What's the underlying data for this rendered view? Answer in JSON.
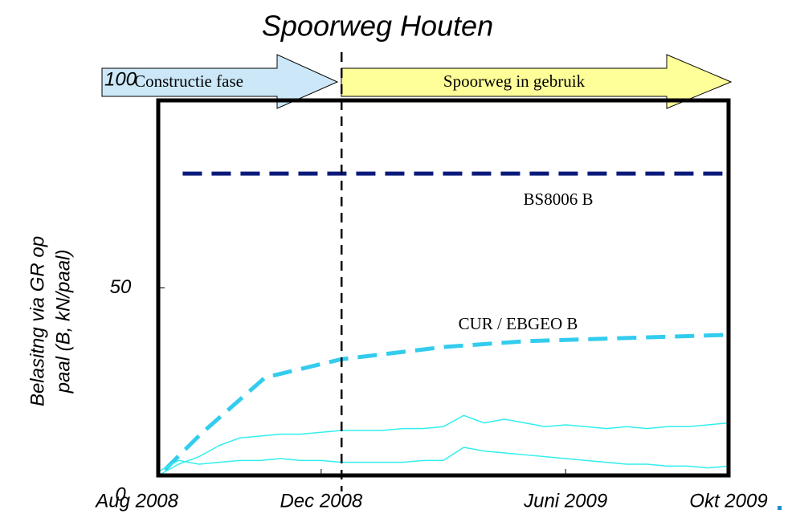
{
  "chart_data": {
    "type": "line",
    "title": "Spoorweg Houten",
    "ylabel": [
      "Belasitng via GR op",
      "paal (B, kN/paal)"
    ],
    "phases": [
      "Constructie fase",
      "Spoorweg in gebruik"
    ],
    "phase_boundary_x": 4.5,
    "xlim": [
      0,
      14
    ],
    "xticks": [
      {
        "value": 0,
        "label": "Aug 2008"
      },
      {
        "value": 4,
        "label": "Dec 2008"
      },
      {
        "value": 10,
        "label": "Juni 2009"
      },
      {
        "value": 14,
        "label": "Okt 2009"
      }
    ],
    "ylim": [
      0,
      100
    ],
    "yticks": [
      0,
      50,
      100
    ],
    "series": [
      {
        "name": "BS8006 B",
        "color": "#0a1a7a",
        "dashed": true,
        "x": [
          0.6,
          14
        ],
        "values": [
          80.5,
          80.5
        ]
      },
      {
        "name": "CUR / EBGEO B",
        "color": "#33ccee",
        "dashed": true,
        "x": [
          0.16,
          1.05,
          2.62,
          4.5,
          7.06,
          9.03,
          14
        ],
        "values": [
          1.5,
          11.1,
          26.1,
          31,
          34.3,
          35.8,
          37.5
        ]
      },
      {
        "color": "#33eeee",
        "dashed": false,
        "x": [
          0,
          0.5,
          1,
          1.5,
          2,
          2.5,
          3,
          3.5,
          4,
          4.5,
          5,
          5.5,
          6,
          6.5,
          7,
          7.5,
          8,
          8.5,
          9,
          9.5,
          10,
          10.5,
          11,
          11.5,
          12,
          12.5,
          13,
          13.5,
          14
        ],
        "values": [
          0,
          3,
          5,
          8,
          10,
          10.5,
          11,
          11,
          11.5,
          12,
          12,
          12,
          12.5,
          12.5,
          13,
          16,
          14,
          15,
          14,
          13,
          13.5,
          13,
          12.5,
          13,
          12.5,
          13,
          13,
          13.5,
          14
        ]
      },
      {
        "color": "#33eeee",
        "dashed": false,
        "x": [
          0,
          0.5,
          1,
          1.5,
          2,
          2.5,
          3,
          3.5,
          4,
          4.5,
          5,
          5.5,
          6,
          6.5,
          7,
          7.5,
          8,
          8.5,
          9,
          9.5,
          10,
          10.5,
          11,
          11.5,
          12,
          12.5,
          13,
          13.5,
          14
        ],
        "values": [
          1,
          4,
          3,
          3.5,
          4,
          4,
          4.5,
          4,
          4,
          3.5,
          3.5,
          3.5,
          3.5,
          4,
          4,
          7.5,
          6.5,
          6,
          5.5,
          5,
          4.5,
          4,
          3.5,
          3,
          3,
          2.5,
          2.5,
          2,
          2.5
        ]
      }
    ]
  }
}
